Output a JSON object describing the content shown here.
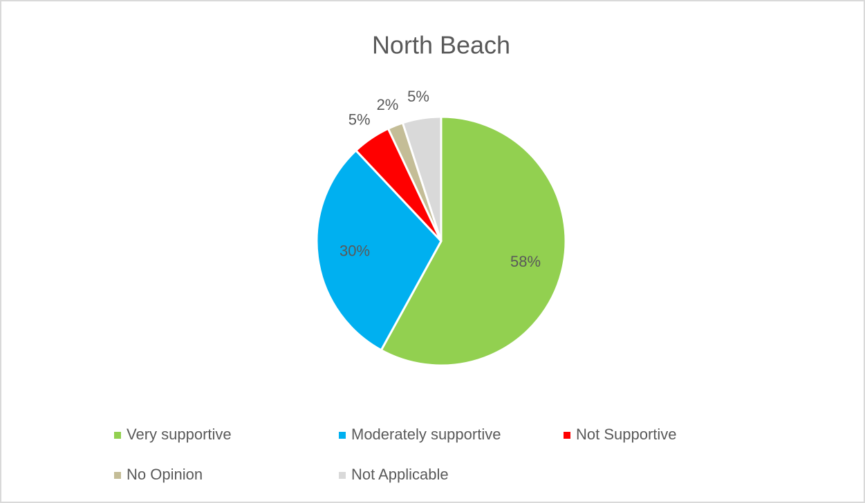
{
  "chart_data": {
    "type": "pie",
    "title": "North Beach",
    "categories": [
      "Very supportive",
      "Moderately supportive",
      "Not Supportive",
      "No Opinion",
      "Not Applicable"
    ],
    "values": [
      58,
      30,
      5,
      2,
      5
    ],
    "value_labels": [
      "58%",
      "30%",
      "5%",
      "2%",
      "5%"
    ],
    "colors": [
      "#92d050",
      "#00b0f0",
      "#ff0000",
      "#c4bd97",
      "#d9d9d9"
    ],
    "legend": "bottom"
  }
}
